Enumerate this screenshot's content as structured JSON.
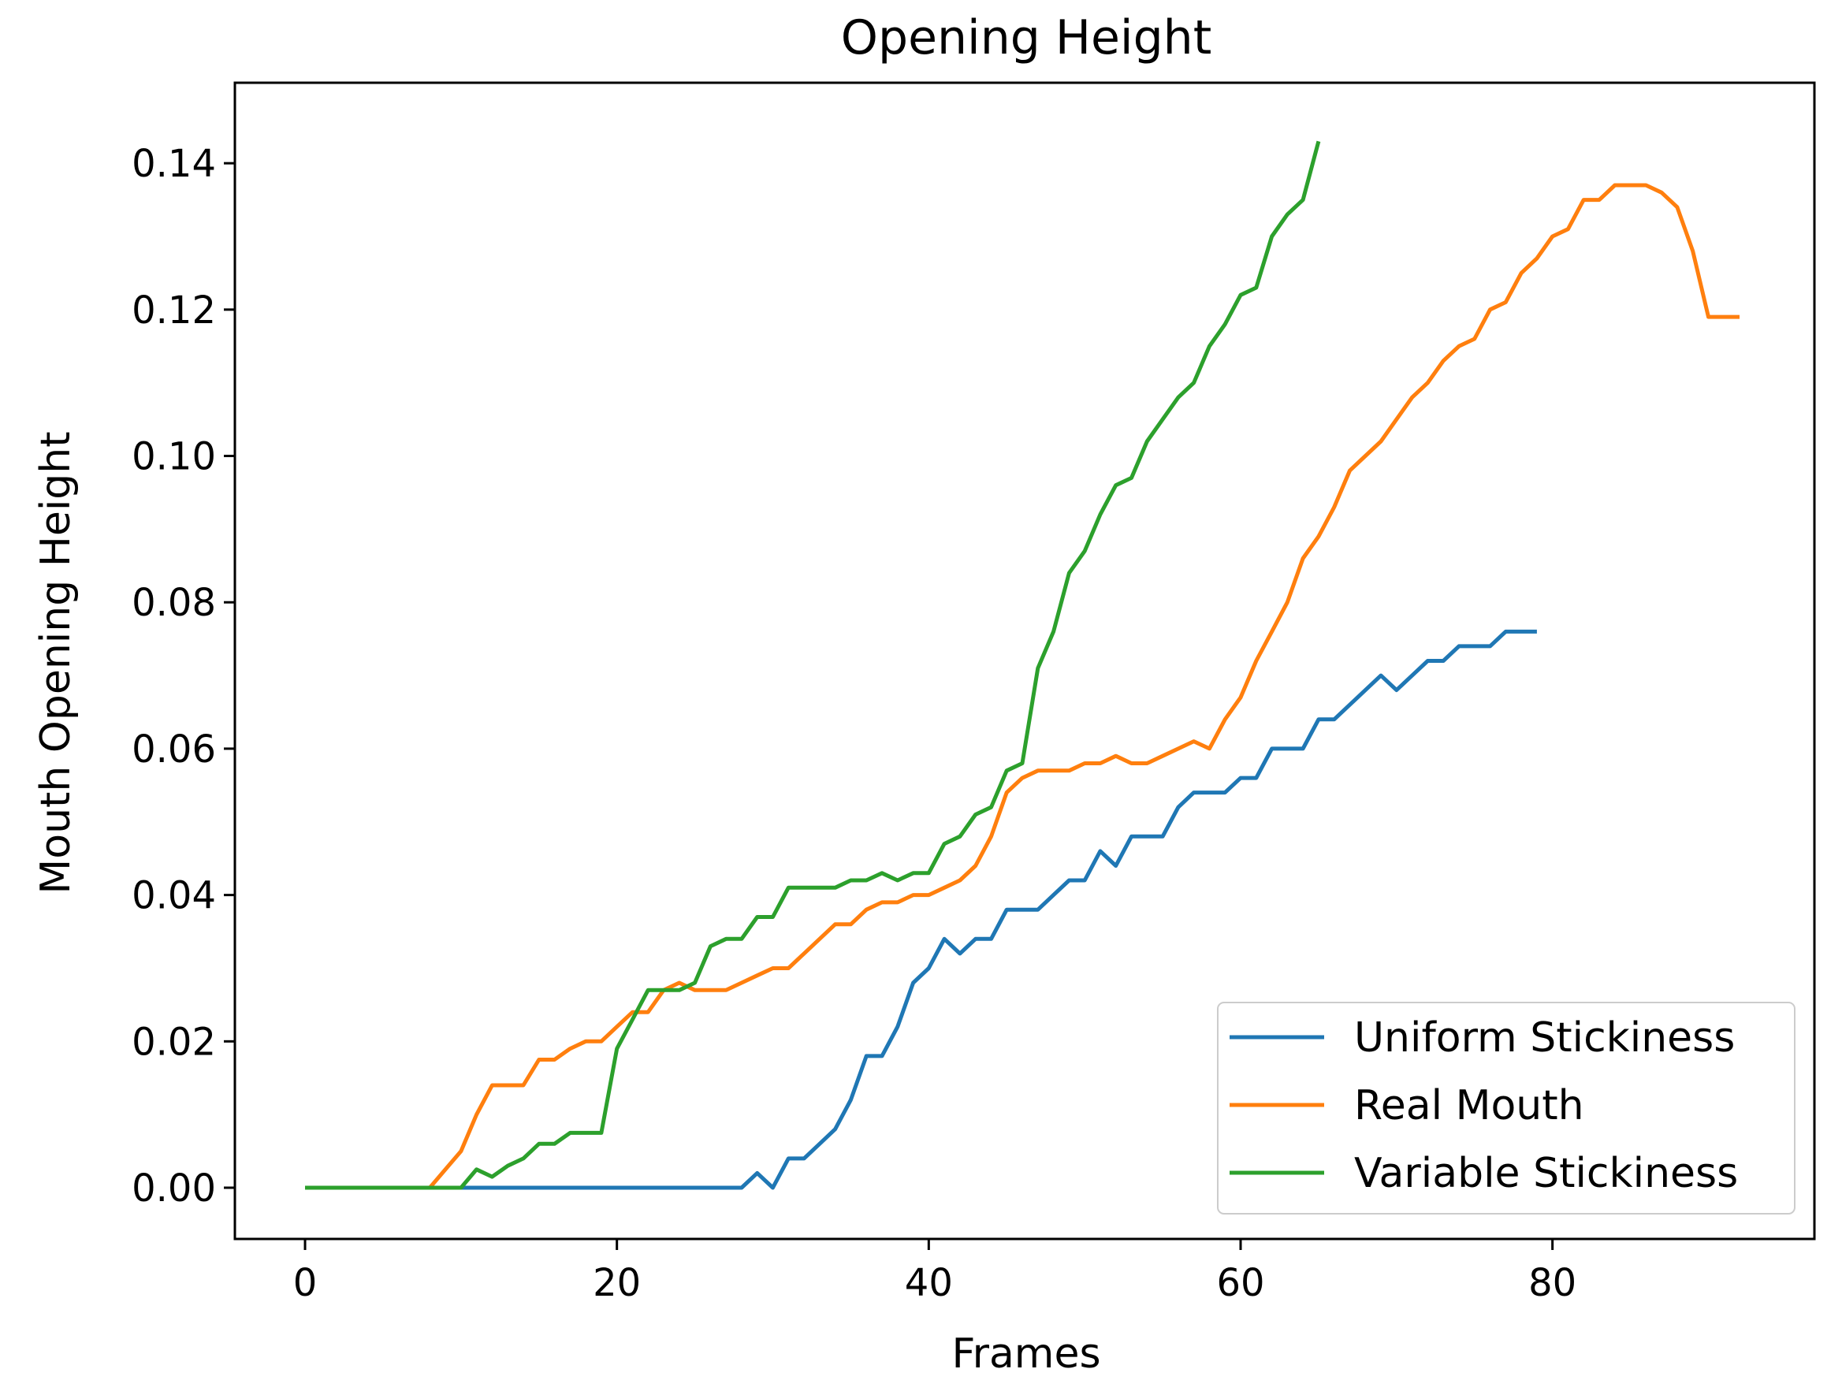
{
  "chart_data": {
    "type": "line",
    "title": "Opening Height",
    "xlabel": "Frames",
    "ylabel": "Mouth Opening Height",
    "xlim": [
      -4.5,
      96.8
    ],
    "ylim": [
      -0.007,
      0.151
    ],
    "x_ticks": [
      0,
      20,
      40,
      60,
      80
    ],
    "x_tick_labels": [
      "0",
      "20",
      "40",
      "60",
      "80"
    ],
    "y_ticks": [
      0,
      0.02,
      0.04,
      0.06,
      0.08,
      0.1,
      0.12,
      0.14
    ],
    "y_tick_labels": [
      "0.00",
      "0.02",
      "0.04",
      "0.06",
      "0.08",
      "0.10",
      "0.12",
      "0.14"
    ],
    "grid": false,
    "legend_position": "bottom-right",
    "series": [
      {
        "name": "Uniform Stickiness",
        "color": "#1f77b4",
        "x": [
          0,
          5,
          10,
          15,
          20,
          25,
          28,
          29,
          30,
          31,
          32,
          33,
          34,
          35,
          36,
          37,
          38,
          39,
          40,
          41,
          42,
          43,
          44,
          45,
          46,
          47,
          48,
          49,
          50,
          51,
          52,
          53,
          54,
          55,
          56,
          57,
          58,
          59,
          60,
          61,
          62,
          63,
          64,
          65,
          66,
          67,
          68,
          69,
          70,
          71,
          72,
          73,
          74,
          75,
          76,
          77,
          78,
          79
        ],
        "y": [
          0,
          0,
          0,
          0,
          0,
          0,
          0,
          0.002,
          0,
          0.004,
          0.004,
          0.006,
          0.008,
          0.012,
          0.018,
          0.018,
          0.022,
          0.028,
          0.03,
          0.034,
          0.032,
          0.034,
          0.034,
          0.038,
          0.038,
          0.038,
          0.04,
          0.042,
          0.042,
          0.046,
          0.044,
          0.048,
          0.048,
          0.048,
          0.052,
          0.054,
          0.054,
          0.054,
          0.056,
          0.056,
          0.06,
          0.06,
          0.06,
          0.064,
          0.064,
          0.066,
          0.068,
          0.07,
          0.068,
          0.07,
          0.072,
          0.072,
          0.074,
          0.074,
          0.074,
          0.076,
          0.076,
          0.076
        ]
      },
      {
        "name": "Real Mouth",
        "color": "#ff7f0e",
        "x": [
          0,
          5,
          8,
          9,
          10,
          11,
          12,
          13,
          14,
          15,
          16,
          17,
          18,
          19,
          20,
          21,
          22,
          23,
          24,
          25,
          26,
          27,
          28,
          29,
          30,
          31,
          32,
          33,
          34,
          35,
          36,
          37,
          38,
          39,
          40,
          41,
          42,
          43,
          44,
          45,
          46,
          47,
          48,
          49,
          50,
          51,
          52,
          53,
          54,
          55,
          56,
          57,
          58,
          59,
          60,
          61,
          62,
          63,
          64,
          65,
          66,
          67,
          68,
          69,
          70,
          71,
          72,
          73,
          74,
          75,
          76,
          77,
          78,
          79,
          80,
          81,
          82,
          83,
          84,
          85,
          86,
          87,
          88,
          89,
          90,
          91,
          92
        ],
        "y": [
          0,
          0,
          0,
          0.0025,
          0.005,
          0.01,
          0.014,
          0.014,
          0.014,
          0.0175,
          0.0175,
          0.019,
          0.02,
          0.02,
          0.022,
          0.024,
          0.024,
          0.027,
          0.028,
          0.027,
          0.027,
          0.027,
          0.028,
          0.029,
          0.03,
          0.03,
          0.032,
          0.034,
          0.036,
          0.036,
          0.038,
          0.039,
          0.039,
          0.04,
          0.04,
          0.041,
          0.042,
          0.044,
          0.048,
          0.054,
          0.056,
          0.057,
          0.057,
          0.057,
          0.058,
          0.058,
          0.059,
          0.058,
          0.058,
          0.059,
          0.06,
          0.061,
          0.06,
          0.064,
          0.067,
          0.072,
          0.076,
          0.08,
          0.086,
          0.089,
          0.093,
          0.098,
          0.1,
          0.102,
          0.105,
          0.108,
          0.11,
          0.113,
          0.115,
          0.116,
          0.12,
          0.121,
          0.125,
          0.127,
          0.13,
          0.131,
          0.135,
          0.135,
          0.137,
          0.137,
          0.137,
          0.136,
          0.134,
          0.128,
          0.119,
          0.119,
          0.119
        ]
      },
      {
        "name": "Variable Stickiness",
        "color": "#2ca02c",
        "x": [
          0,
          5,
          9,
          10,
          11,
          12,
          13,
          14,
          15,
          16,
          17,
          18,
          19,
          20,
          21,
          22,
          23,
          24,
          25,
          26,
          27,
          28,
          29,
          30,
          31,
          32,
          33,
          34,
          35,
          36,
          37,
          38,
          39,
          40,
          41,
          42,
          43,
          44,
          45,
          46,
          47,
          48,
          49,
          50,
          51,
          52,
          53,
          54,
          55,
          56,
          57,
          58,
          59,
          60,
          61,
          62,
          63,
          64,
          65
        ],
        "y": [
          0,
          0,
          0,
          0,
          0.0025,
          0.0015,
          0.003,
          0.004,
          0.006,
          0.006,
          0.0075,
          0.0075,
          0.0075,
          0.019,
          0.023,
          0.027,
          0.027,
          0.027,
          0.028,
          0.033,
          0.034,
          0.034,
          0.037,
          0.037,
          0.041,
          0.041,
          0.041,
          0.041,
          0.042,
          0.042,
          0.043,
          0.042,
          0.043,
          0.043,
          0.047,
          0.048,
          0.051,
          0.052,
          0.057,
          0.058,
          0.071,
          0.076,
          0.084,
          0.087,
          0.092,
          0.096,
          0.097,
          0.102,
          0.105,
          0.108,
          0.11,
          0.115,
          0.118,
          0.122,
          0.123,
          0.13,
          0.133,
          0.135,
          0.143
        ]
      }
    ]
  }
}
